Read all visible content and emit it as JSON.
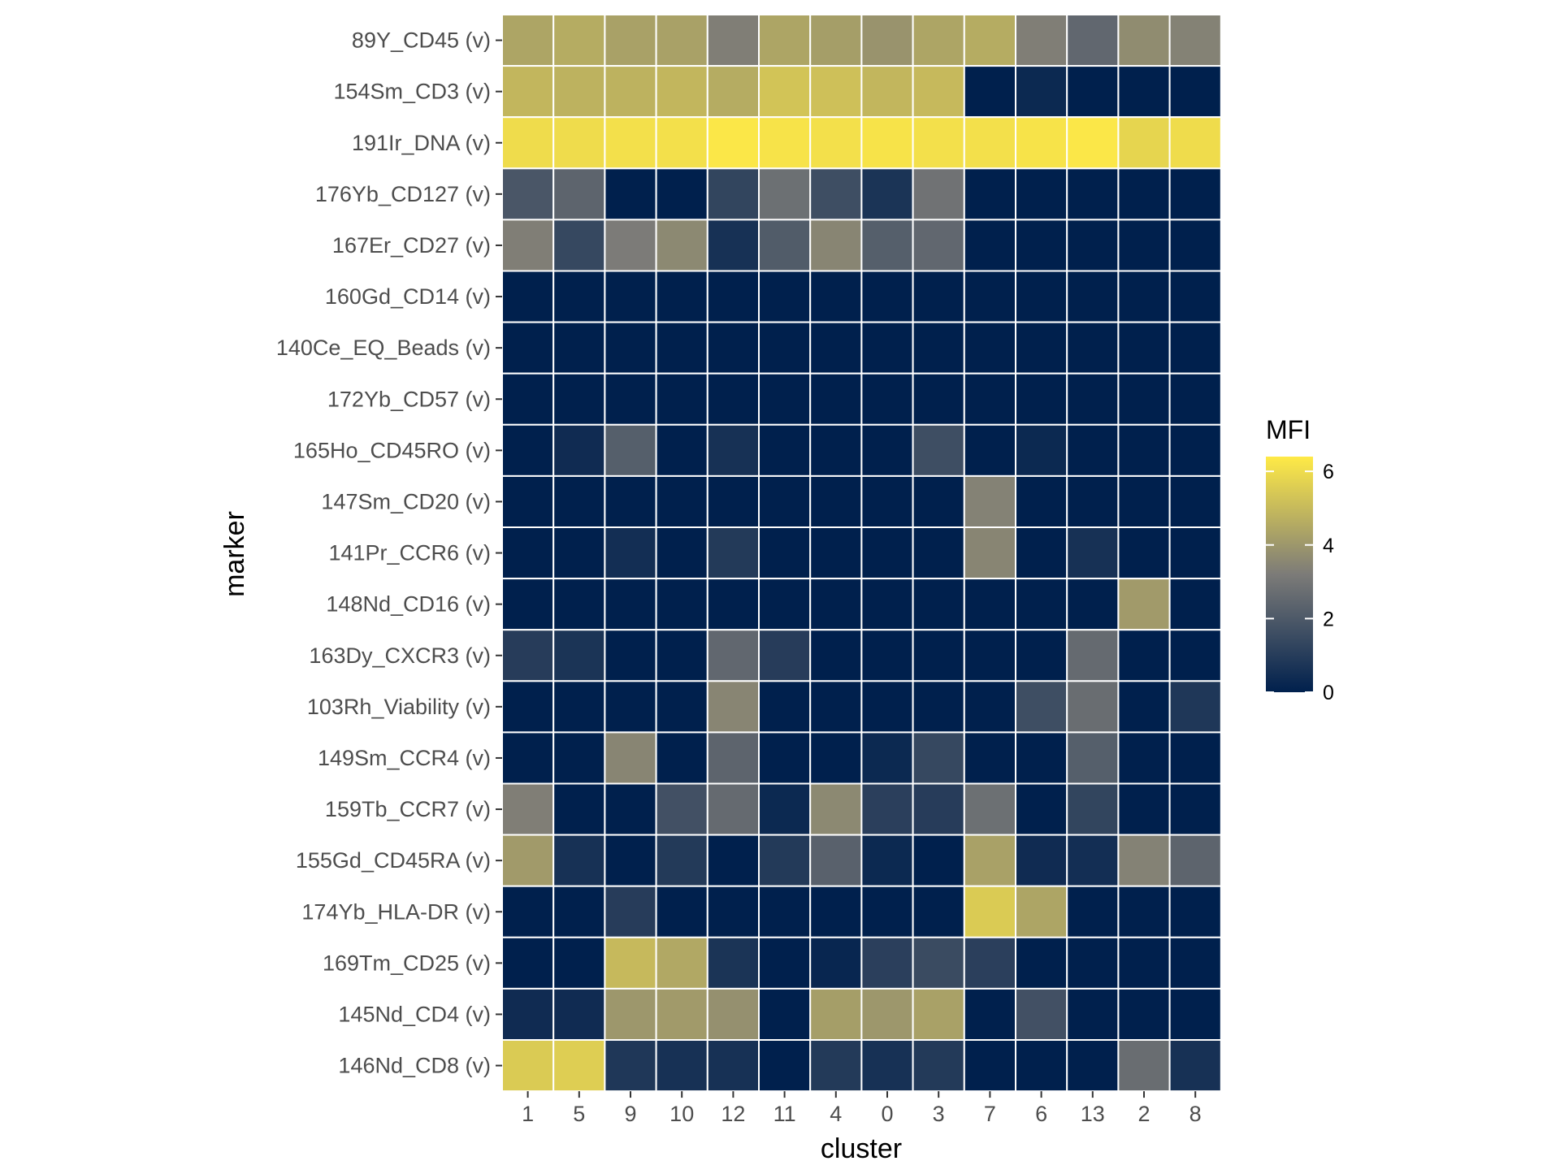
{
  "chart_data": {
    "type": "heatmap",
    "xlabel": "cluster",
    "ylabel": "marker",
    "x_categories": [
      "1",
      "5",
      "9",
      "10",
      "12",
      "11",
      "4",
      "0",
      "3",
      "7",
      "6",
      "13",
      "2",
      "8"
    ],
    "y_categories": [
      "89Y_CD45 (v)",
      "154Sm_CD3 (v)",
      "191Ir_DNA (v)",
      "176Yb_CD127 (v)",
      "167Er_CD27 (v)",
      "160Gd_CD14 (v)",
      "140Ce_EQ_Beads (v)",
      "172Yb_CD57 (v)",
      "165Ho_CD45RO (v)",
      "147Sm_CD20 (v)",
      "141Pr_CCR6 (v)",
      "148Nd_CD16 (v)",
      "163Dy_CXCR3 (v)",
      "103Rh_Viability (v)",
      "149Sm_CCR4 (v)",
      "159Tb_CCR7 (v)",
      "155Gd_CD45RA (v)",
      "174Yb_HLA-DR (v)",
      "169Tm_CD25 (v)",
      "145Nd_CD4 (v)",
      "146Nd_CD8 (v)"
    ],
    "values": [
      [
        4.4,
        4.6,
        4.3,
        4.3,
        3.3,
        4.4,
        4.2,
        3.9,
        4.4,
        4.6,
        3.3,
        2.5,
        3.7,
        3.4
      ],
      [
        4.9,
        4.8,
        4.8,
        4.9,
        4.6,
        5.3,
        5.2,
        4.9,
        5.0,
        0.0,
        0.3,
        0.0,
        0.0,
        0.0
      ],
      [
        6.0,
        6.0,
        6.1,
        6.1,
        6.3,
        6.2,
        6.1,
        6.2,
        6.1,
        6.1,
        6.2,
        6.3,
        5.8,
        6.0
      ],
      [
        1.9,
        2.4,
        0.0,
        0.0,
        1.3,
        2.8,
        1.6,
        0.7,
        2.9,
        0.0,
        0.0,
        0.0,
        0.0,
        0.0
      ],
      [
        3.3,
        1.4,
        3.2,
        3.6,
        0.6,
        2.1,
        3.5,
        2.2,
        2.5,
        0.0,
        0.0,
        0.0,
        0.0,
        0.0
      ],
      [
        0.0,
        0.0,
        0.0,
        0.0,
        0.0,
        0.0,
        0.0,
        0.0,
        0.0,
        0.0,
        0.0,
        0.0,
        0.0,
        0.0
      ],
      [
        0.0,
        0.0,
        0.0,
        0.0,
        0.0,
        0.0,
        0.0,
        0.0,
        0.0,
        0.0,
        0.0,
        0.0,
        0.0,
        0.0
      ],
      [
        0.0,
        0.0,
        0.0,
        0.0,
        0.0,
        0.0,
        0.0,
        0.0,
        0.0,
        0.0,
        0.0,
        0.0,
        0.0,
        0.0
      ],
      [
        0.0,
        0.4,
        2.2,
        0.0,
        0.6,
        0.0,
        0.0,
        0.0,
        1.6,
        0.0,
        0.3,
        0.0,
        0.0,
        0.0
      ],
      [
        0.0,
        0.0,
        0.0,
        0.0,
        0.0,
        0.0,
        0.0,
        0.0,
        0.0,
        3.4,
        0.0,
        0.0,
        0.0,
        0.0
      ],
      [
        0.0,
        0.0,
        0.5,
        0.0,
        0.9,
        0.0,
        0.0,
        0.0,
        0.0,
        3.5,
        0.0,
        0.6,
        0.0,
        0.0
      ],
      [
        0.0,
        0.0,
        0.0,
        0.0,
        0.0,
        0.0,
        0.0,
        0.0,
        0.0,
        0.0,
        0.0,
        0.0,
        4.1,
        0.0
      ],
      [
        1.0,
        0.7,
        0.0,
        0.0,
        2.5,
        1.0,
        0.0,
        0.0,
        0.0,
        0.0,
        0.0,
        2.6,
        0.0,
        0.0
      ],
      [
        0.0,
        0.0,
        0.0,
        0.0,
        3.5,
        0.0,
        0.0,
        0.0,
        0.0,
        0.0,
        1.6,
        2.7,
        0.0,
        0.8
      ],
      [
        0.0,
        0.0,
        3.5,
        0.0,
        2.4,
        0.0,
        0.0,
        0.3,
        1.4,
        0.0,
        0.0,
        2.2,
        0.0,
        0.0
      ],
      [
        3.3,
        0.0,
        0.0,
        1.7,
        2.6,
        0.3,
        3.6,
        1.1,
        1.0,
        2.8,
        0.0,
        1.3,
        0.0,
        0.0
      ],
      [
        4.1,
        0.6,
        0.0,
        0.9,
        0.0,
        0.9,
        2.3,
        0.3,
        0.0,
        4.3,
        0.4,
        0.5,
        3.4,
        2.4
      ],
      [
        0.0,
        0.0,
        1.0,
        0.0,
        0.0,
        0.0,
        0.0,
        0.0,
        0.0,
        5.5,
        4.4,
        0.0,
        0.0,
        0.0
      ],
      [
        0.0,
        0.0,
        5.0,
        4.5,
        0.7,
        0.0,
        0.2,
        1.1,
        1.5,
        1.1,
        0.0,
        0.0,
        0.0,
        0.0
      ],
      [
        0.4,
        0.4,
        4.0,
        4.1,
        3.8,
        0.0,
        4.2,
        4.0,
        4.3,
        0.0,
        1.7,
        0.0,
        0.0,
        0.0
      ],
      [
        5.5,
        5.6,
        0.8,
        0.6,
        0.6,
        0.0,
        0.9,
        0.6,
        0.9,
        0.0,
        0.0,
        0.0,
        2.7,
        0.6
      ]
    ],
    "color_scale": {
      "low": "#00204D",
      "mid": "#7C7B78",
      "high": "#FFEA46"
    },
    "legend": {
      "title": "MFI",
      "ticks": [
        "0",
        "2",
        "4",
        "6"
      ],
      "tick_values": [
        0,
        2,
        4,
        6
      ],
      "range": [
        0,
        6.4
      ],
      "placement": "right"
    },
    "grid_lines": true,
    "cell_border_color": "#ffffff",
    "tick_mark_color": "#333333"
  }
}
